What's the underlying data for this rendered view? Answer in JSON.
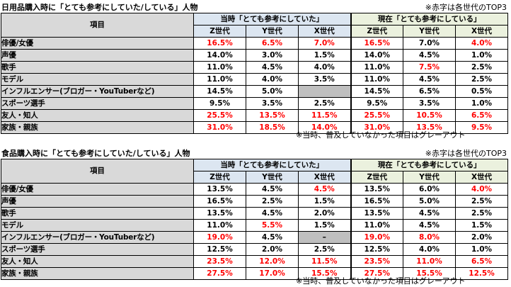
{
  "colors": {
    "red": "#ff0000",
    "label_bg": "#d9d9d9",
    "group1_bg": "#dce6f1",
    "group2_bg": "#ebf1de",
    "na_gray": "#bfbfbf"
  },
  "tables": [
    {
      "title": "日用品購入時に「とても参考にしていた/している」人物",
      "note": "※赤字は各世代のTOP3",
      "category_header": "項目",
      "group1": "当時「とても参考にしていた」",
      "group2": "現在「とても参考にしている」",
      "generations": [
        "Z世代",
        "Y世代",
        "X世代"
      ],
      "rows": [
        {
          "label": "俳優/女優",
          "values": [
            "16.5%",
            "6.5%",
            "7.0%",
            "16.5%",
            "7.0%",
            "4.0%"
          ],
          "red": [
            true,
            true,
            true,
            true,
            false,
            true
          ],
          "gray": [
            false,
            false,
            false,
            false,
            false,
            false
          ]
        },
        {
          "label": "声優",
          "values": [
            "14.0%",
            "3.0%",
            "1.5%",
            "14.0%",
            "4.5%",
            "1.0%"
          ],
          "red": [
            false,
            false,
            false,
            false,
            false,
            false
          ],
          "gray": [
            false,
            false,
            false,
            false,
            false,
            false
          ]
        },
        {
          "label": "歌手",
          "values": [
            "11.0%",
            "4.5%",
            "4.0%",
            "11.0%",
            "7.5%",
            "2.5%"
          ],
          "red": [
            false,
            false,
            false,
            false,
            true,
            false
          ],
          "gray": [
            false,
            false,
            false,
            false,
            false,
            false
          ]
        },
        {
          "label": "モデル",
          "values": [
            "11.0%",
            "4.0%",
            "3.5%",
            "11.0%",
            "4.5%",
            "2.5%"
          ],
          "red": [
            false,
            false,
            false,
            false,
            false,
            false
          ],
          "gray": [
            false,
            false,
            false,
            false,
            false,
            false
          ]
        },
        {
          "label": "インフルエンサー(ブロガー・YouTuberなど)",
          "values": [
            "14.5%",
            "5.0%",
            "",
            "14.5%",
            "6.5%",
            "0.5%"
          ],
          "red": [
            false,
            false,
            false,
            false,
            false,
            false
          ],
          "gray": [
            false,
            false,
            true,
            false,
            false,
            false
          ]
        },
        {
          "label": "スポーツ選手",
          "values": [
            "9.5%",
            "3.5%",
            "2.5%",
            "9.5%",
            "3.5%",
            "1.0%"
          ],
          "red": [
            false,
            false,
            false,
            false,
            false,
            false
          ],
          "gray": [
            false,
            false,
            false,
            false,
            false,
            false
          ]
        },
        {
          "label": "友人・知人",
          "values": [
            "25.5%",
            "13.5%",
            "11.5%",
            "25.5%",
            "10.5%",
            "6.5%"
          ],
          "red": [
            true,
            true,
            true,
            true,
            true,
            true
          ],
          "gray": [
            false,
            false,
            false,
            false,
            false,
            false
          ]
        },
        {
          "label": "家族・親族",
          "values": [
            "31.0%",
            "18.5%",
            "14.0%",
            "31.0%",
            "13.5%",
            "9.5%"
          ],
          "red": [
            true,
            true,
            true,
            true,
            true,
            true
          ],
          "gray": [
            false,
            false,
            false,
            false,
            false,
            false
          ]
        }
      ],
      "footnote": "※当時、普及していなかった項目はグレーアウト"
    },
    {
      "title": "食品購入時に「とても参考にしていた/している」人物",
      "note": "※赤字は各世代のTOP3",
      "category_header": "項目",
      "group1": "当時「とても参考にしていた」",
      "group2": "現在「とても参考にしている」",
      "generations": [
        "Z世代",
        "Y世代",
        "X世代"
      ],
      "rows": [
        {
          "label": "俳優/女優",
          "values": [
            "13.5%",
            "4.5%",
            "4.5%",
            "13.5%",
            "6.0%",
            "4.0%"
          ],
          "red": [
            false,
            false,
            true,
            false,
            false,
            true
          ],
          "gray": [
            false,
            false,
            false,
            false,
            false,
            false
          ]
        },
        {
          "label": "声優",
          "values": [
            "16.5%",
            "2.5%",
            "1.5%",
            "16.5%",
            "5.0%",
            "2.5%"
          ],
          "red": [
            false,
            false,
            false,
            false,
            false,
            false
          ],
          "gray": [
            false,
            false,
            false,
            false,
            false,
            false
          ]
        },
        {
          "label": "歌手",
          "values": [
            "13.5%",
            "4.5%",
            "2.0%",
            "13.5%",
            "4.5%",
            "2.5%"
          ],
          "red": [
            false,
            false,
            false,
            false,
            false,
            false
          ],
          "gray": [
            false,
            false,
            false,
            false,
            false,
            false
          ]
        },
        {
          "label": "モデル",
          "values": [
            "11.0%",
            "5.5%",
            "1.5%",
            "11.0%",
            "4.5%",
            "1.5%"
          ],
          "red": [
            false,
            true,
            false,
            false,
            false,
            false
          ],
          "gray": [
            false,
            false,
            false,
            false,
            false,
            false
          ]
        },
        {
          "label": "インフルエンサー(ブロガー・YouTuberなど)",
          "values": [
            "19.0%",
            "4.5%",
            "–",
            "19.0%",
            "8.0%",
            "2.0%"
          ],
          "red": [
            true,
            false,
            false,
            true,
            true,
            false
          ],
          "gray": [
            false,
            false,
            true,
            false,
            false,
            false
          ]
        },
        {
          "label": "スポーツ選手",
          "values": [
            "12.5%",
            "2.0%",
            "2.5%",
            "12.5%",
            "4.0%",
            "1.0%"
          ],
          "red": [
            false,
            false,
            false,
            false,
            false,
            false
          ],
          "gray": [
            false,
            false,
            false,
            false,
            false,
            false
          ]
        },
        {
          "label": "友人・知人",
          "values": [
            "23.5%",
            "12.0%",
            "11.5%",
            "23.5%",
            "11.0%",
            "6.5%"
          ],
          "red": [
            true,
            true,
            true,
            true,
            true,
            true
          ],
          "gray": [
            false,
            false,
            false,
            false,
            false,
            false
          ]
        },
        {
          "label": "家族・親族",
          "values": [
            "27.5%",
            "17.0%",
            "15.5%",
            "27.5%",
            "15.5%",
            "12.5%"
          ],
          "red": [
            true,
            true,
            true,
            true,
            true,
            true
          ],
          "gray": [
            false,
            false,
            false,
            false,
            false,
            false
          ]
        }
      ],
      "footnote": "※当時、普及していなかった項目はグレーアウト"
    }
  ]
}
